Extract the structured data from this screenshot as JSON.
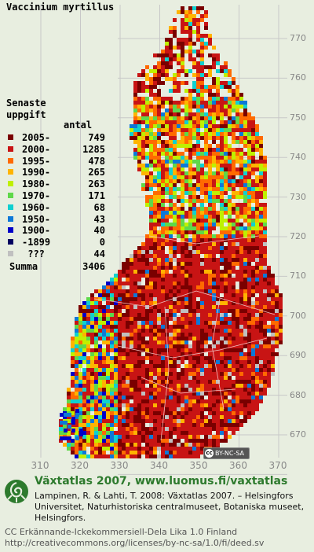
{
  "species": "Vaccinium myrtillus",
  "legend": {
    "title_line1": "Senaste",
    "title_line2": "uppgift",
    "count_header": "antal",
    "items": [
      {
        "label": "2005-",
        "count": "749",
        "color": "#7a0000"
      },
      {
        "label": "2000-",
        "count": "1285",
        "color": "#c81414"
      },
      {
        "label": "1995-",
        "count": "478",
        "color": "#ff6a00"
      },
      {
        "label": "1990-",
        "count": "265",
        "color": "#ffb400"
      },
      {
        "label": "1980-",
        "count": "263",
        "color": "#bff000"
      },
      {
        "label": "1970-",
        "count": "171",
        "color": "#5fd84a"
      },
      {
        "label": "1960-",
        "count": "68",
        "color": "#10d0d0"
      },
      {
        "label": "1950-",
        "count": "43",
        "color": "#0d78d8"
      },
      {
        "label": "1900-",
        "count": "40",
        "color": "#0000c8"
      },
      {
        "label": "-1899",
        "count": "0",
        "color": "#000060"
      },
      {
        "label": " ???",
        "count": "44",
        "color": "#c0c0c0"
      }
    ],
    "total_label": "Summa",
    "total_count": "3406"
  },
  "y_ticks": [
    "770",
    "760",
    "750",
    "740",
    "730",
    "720",
    "710",
    "700",
    "690",
    "680",
    "670"
  ],
  "x_ticks": [
    "310",
    "320",
    "330",
    "340",
    "350",
    "360",
    "370"
  ],
  "cc_badge_text": "BY-NC-SA",
  "cc_badge_icon": "cc",
  "footer": {
    "title": "Växtatlas 2007, www.luomus.fi/vaxtatlas",
    "citation": "Lampinen, R. & Lahti, T. 2008: Växtatlas 2007. – Helsingfors Universitet, Naturhistoriska centralmuseet, Botaniska museet, Helsingfors.",
    "license_line1": "CC Erkännande-Ickekommersiell-Dela Lika 1.0 Finland",
    "license_line2": "http://creativecommons.org/licenses/by-nc-sa/1.0/fi/deed.sv"
  },
  "map_background_color": "#e8eee0",
  "grid_color": "#c8c8c8"
}
